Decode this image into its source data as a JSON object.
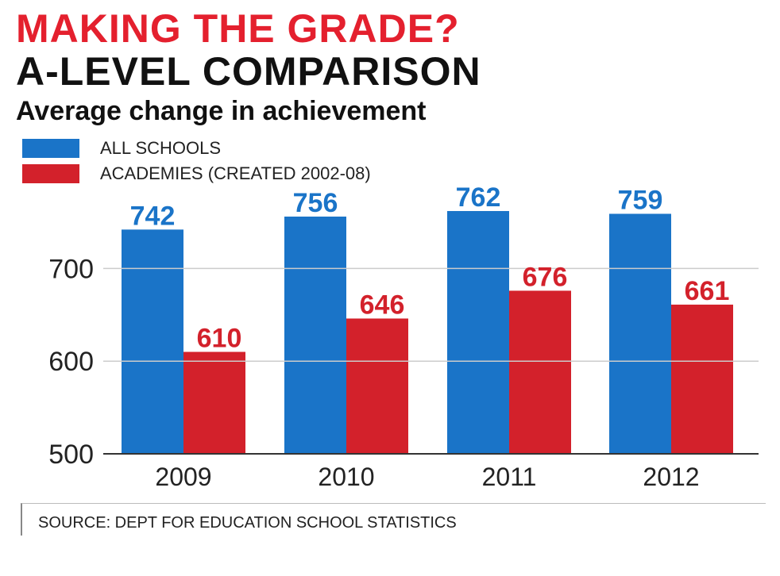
{
  "header": {
    "title_line1": "MAKING THE GRADE?",
    "title_line2": "A-LEVEL COMPARISON",
    "subtitle": "Average change in achievement"
  },
  "legend": [
    {
      "label": "ALL SCHOOLS",
      "color": "#1a74c8"
    },
    {
      "label": "ACADEMIES  (CREATED 2002-08)",
      "color": "#d3212b"
    }
  ],
  "source": "SOURCE: DEPT FOR EDUCATION SCHOOL STATISTICS",
  "chart_data": {
    "type": "bar",
    "categories": [
      "2009",
      "2010",
      "2011",
      "2012"
    ],
    "series": [
      {
        "name": "ALL SCHOOLS",
        "values": [
          742,
          756,
          762,
          759
        ],
        "color": "#1a74c8"
      },
      {
        "name": "ACADEMIES  (CREATED 2002-08)",
        "values": [
          610,
          646,
          676,
          661
        ],
        "color": "#d3212b"
      }
    ],
    "yticks": [
      "500",
      "600",
      "700"
    ],
    "ylim": [
      500,
      800
    ],
    "grid": true,
    "data_labels": true
  }
}
